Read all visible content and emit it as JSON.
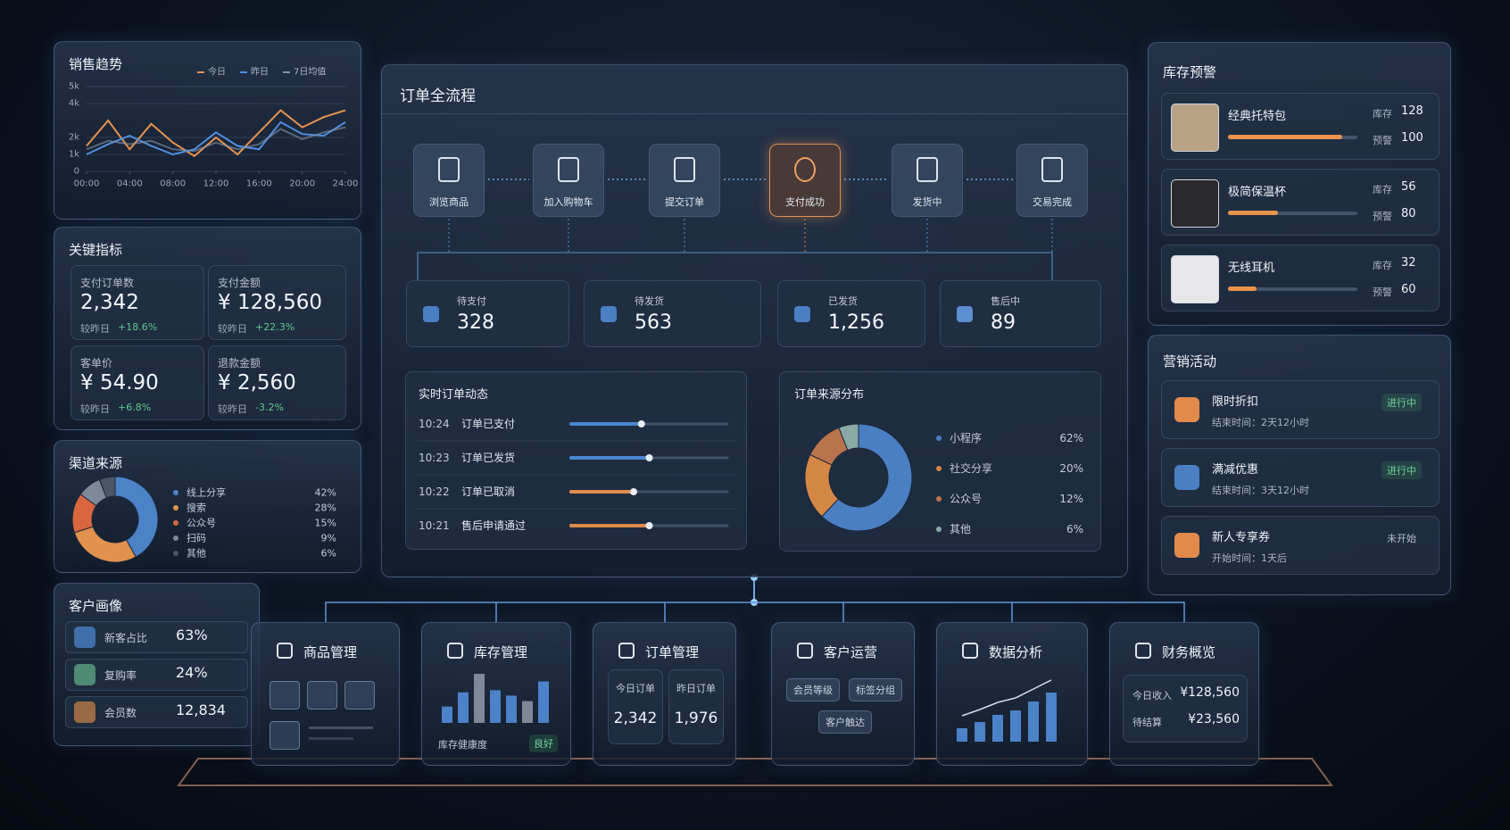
{
  "chart_data": [
    {
      "type": "line",
      "title": "销售趋势",
      "x": [
        0,
        2,
        4,
        6,
        8,
        10,
        12,
        14,
        16,
        18,
        20,
        22,
        24
      ],
      "xlim": [
        0,
        24
      ],
      "xticks": [
        {
          "value": 0,
          "label": "00:00"
        },
        {
          "value": 4,
          "label": "04:00"
        },
        {
          "value": 8,
          "label": "08:00"
        },
        {
          "value": 12,
          "label": "12:00"
        },
        {
          "value": 16,
          "label": "16:00"
        },
        {
          "value": 20,
          "label": "20:00"
        },
        {
          "value": 24,
          "label": "24:00"
        }
      ],
      "ylim": [
        0,
        5000
      ],
      "yticks": [
        0,
        {
          "value": 1000,
          "label": "1k"
        },
        {
          "value": 2000,
          "label": "2k"
        },
        {
          "value": 4000,
          "label": "4k"
        },
        {
          "value": 5000,
          "label": "5k"
        }
      ],
      "grid": true,
      "series": [
        {
          "name": "今日",
          "color": "#e8924c",
          "values": [
            1500,
            3000,
            1300,
            2800,
            1700,
            900,
            2000,
            1000,
            2300,
            3600,
            2600,
            3200,
            3600
          ]
        },
        {
          "name": "昨日",
          "color": "#4f8fe0",
          "values": [
            1000,
            1600,
            2100,
            1500,
            1000,
            1300,
            2300,
            1500,
            1300,
            2900,
            2200,
            2100,
            2900
          ]
        },
        {
          "name": "7日均值",
          "color": "#8393a8",
          "values": [
            1300,
            1800,
            1600,
            1800,
            1300,
            1200,
            1700,
            1300,
            1600,
            2500,
            1900,
            2300,
            2600
          ]
        }
      ]
    },
    {
      "type": "pie",
      "title": "渠道来源",
      "categories": [
        "线上分享",
        "搜索",
        "公众号",
        "扫码",
        "其他"
      ],
      "values": [
        42,
        28,
        15,
        9,
        6
      ],
      "value_labels": [
        "42%",
        "28%",
        "15%",
        "9%",
        "6%"
      ],
      "colors": [
        "#4b82c8",
        "#e0924e",
        "#d9663f",
        "#7d8899",
        "#4a5566"
      ]
    },
    {
      "type": "pie",
      "title": "订单来源分布",
      "categories": [
        "小程序",
        "社交分享",
        "公众号",
        "其他"
      ],
      "values": [
        62,
        20,
        12,
        6
      ],
      "value_labels": [
        "62%",
        "20%",
        "12%",
        "6%"
      ],
      "colors": [
        "#4a7fc4",
        "#d48745",
        "#b9734a",
        "#8aaaa6"
      ]
    }
  ],
  "key_metrics": {
    "title": "关键指标",
    "cards": [
      {
        "label": "支付订单数",
        "value": "2,342",
        "compare": "较昨日",
        "change": "+18.6%"
      },
      {
        "label": "支付金额",
        "value": "¥ 128,560",
        "compare": "较昨日",
        "change": "+22.3%"
      },
      {
        "label": "客单价",
        "value": "¥ 54.90",
        "compare": "较昨日",
        "change": "+6.8%"
      },
      {
        "label": "退款金额",
        "value": "¥ 2,560",
        "compare": "较昨日",
        "change": "-3.2%"
      }
    ]
  },
  "customer": {
    "title": "客户画像",
    "rows": [
      {
        "label": "新客占比",
        "value": "63%"
      },
      {
        "label": "复购率",
        "value": "24%"
      },
      {
        "label": "会员数",
        "value": "12,834"
      }
    ]
  },
  "order_flow": {
    "title": "订单全流程",
    "steps": [
      "浏览商品",
      "加入购物车",
      "提交订单",
      "支付成功",
      "发货中",
      "交易完成"
    ],
    "status": [
      {
        "label": "待支付",
        "value": "328"
      },
      {
        "label": "待发货",
        "value": "563"
      },
      {
        "label": "已发货",
        "value": "1,256"
      },
      {
        "label": "售后中",
        "value": "89"
      }
    ]
  },
  "realtime_orders": {
    "title": "实时订单动态",
    "rows": [
      {
        "time": "10:24",
        "event": "订单已支付",
        "progress": 45,
        "color": "#4a86d0"
      },
      {
        "time": "10:23",
        "event": "订单已发货",
        "progress": 50,
        "color": "#4a86d0"
      },
      {
        "time": "10:22",
        "event": "订单已取消",
        "progress": 40,
        "color": "#e08a4c"
      },
      {
        "time": "10:21",
        "event": "售后申请通过",
        "progress": 50,
        "color": "#e08a4c"
      }
    ]
  },
  "inventory": {
    "title": "库存预警",
    "items": [
      {
        "name": "经典托特包",
        "stock_label": "库存",
        "stock": 128,
        "alert_label": "预警",
        "alert": 100
      },
      {
        "name": "极简保温杯",
        "stock_label": "库存",
        "stock": 56,
        "alert_label": "预警",
        "alert": 80
      },
      {
        "name": "无线耳机",
        "stock_label": "库存",
        "stock": 32,
        "alert_label": "预警",
        "alert": 60
      }
    ]
  },
  "marketing": {
    "title": "营销活动",
    "items": [
      {
        "name": "限时折扣",
        "time": "结束时间：2天12小时",
        "status": "进行中"
      },
      {
        "name": "满减优惠",
        "time": "结束时间：3天12小时",
        "status": "进行中"
      },
      {
        "name": "新人专享券",
        "time": "开始时间：1天后",
        "status": "未开始"
      }
    ]
  },
  "modules": [
    {
      "title": "商品管理"
    },
    {
      "title": "库存管理",
      "bars": [
        15,
        28,
        45,
        30,
        25,
        20,
        38
      ],
      "health_label": "库存健康度",
      "health": "良好"
    },
    {
      "title": "订单管理",
      "stats": [
        {
          "label": "今日订单",
          "value": "2,342"
        },
        {
          "label": "昨日订单",
          "value": "1,976"
        }
      ]
    },
    {
      "title": "客户运营",
      "tags": [
        "会员等级",
        "标签分组",
        "客户触达"
      ]
    },
    {
      "title": "数据分析",
      "bars": [
        15,
        22,
        30,
        35,
        45,
        55
      ]
    },
    {
      "title": "财务概览",
      "rows": [
        {
          "label": "今日收入",
          "value": "¥128,560"
        },
        {
          "label": "待结算",
          "value": "¥23,560"
        }
      ]
    }
  ]
}
